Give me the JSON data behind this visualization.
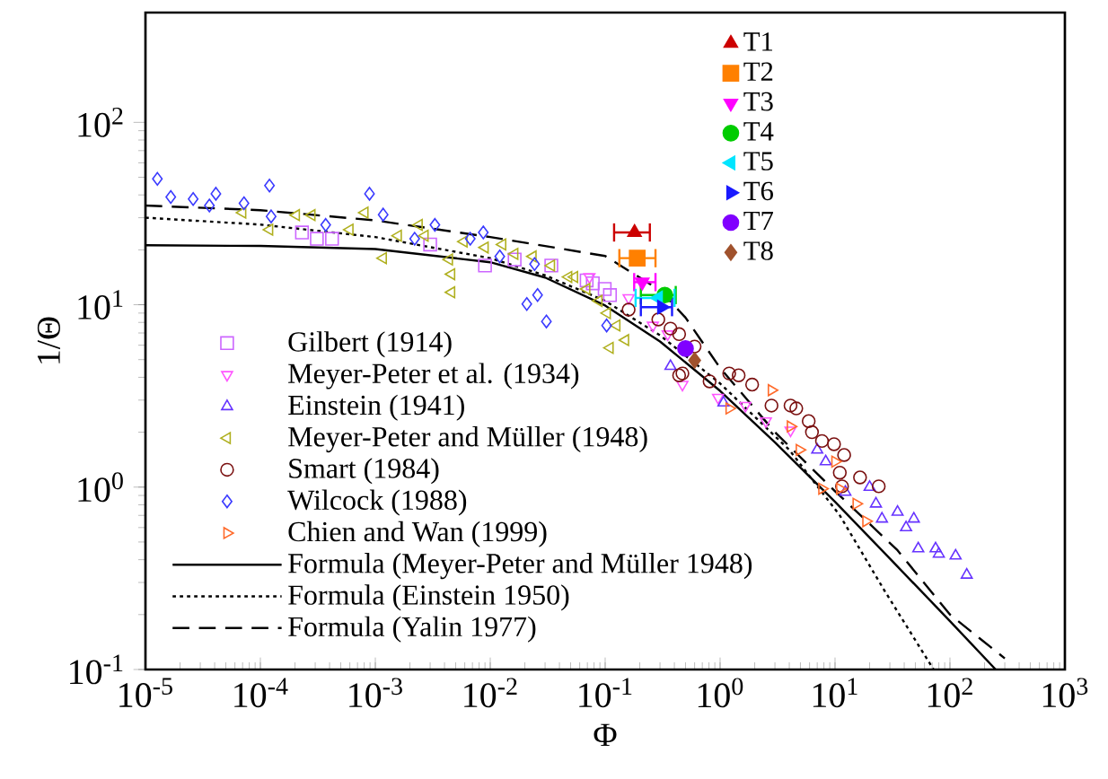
{
  "chart_data": {
    "type": "scatter",
    "xlabel": "Φ",
    "ylabel": "1/Θ",
    "log": "xy",
    "xlim": [
      1e-05,
      1000
    ],
    "ylim": [
      0.1,
      400
    ],
    "xticks": [
      {
        "value": 1e-05,
        "label": "10$^{-5}$"
      },
      {
        "value": 0.0001,
        "label": "10$^{-4}$"
      },
      {
        "value": 0.001,
        "label": "10$^{-3}$"
      },
      {
        "value": 0.01,
        "label": "10$^{-2}$"
      },
      {
        "value": 0.1,
        "label": "10$^{-1}$"
      },
      {
        "value": 1,
        "label": "10$^{0}$"
      },
      {
        "value": 10,
        "label": "10$^{1}$"
      },
      {
        "value": 100,
        "label": "10$^{2}$"
      },
      {
        "value": 1000,
        "label": "10$^{3}$"
      }
    ],
    "yticks": [
      {
        "value": 0.1,
        "label": "10$^{-1}$"
      },
      {
        "value": 1,
        "label": "10$^{0}$"
      },
      {
        "value": 10,
        "label": "10$^{1}$"
      },
      {
        "value": 100,
        "label": "10$^{2}$"
      }
    ],
    "legend": "left",
    "series": [
      {
        "name": "Gilbert (1914)",
        "color": "#cc66ff",
        "marker": "square",
        "x": [
          0.00023,
          0.00031,
          0.00042,
          0.003,
          0.009,
          0.0163,
          0.034,
          0.069,
          0.078,
          0.099,
          0.11
        ],
        "values": [
          24.9,
          23,
          23,
          21.4,
          16.4,
          17.7,
          16.4,
          13.6,
          13.1,
          12.2,
          11.3
        ]
      },
      {
        "name": "Meyer-Peter et al. (1934)",
        "color": "#ff55ff",
        "marker": "triangle_down",
        "x": [
          0.073,
          0.16,
          0.21,
          0.26,
          0.35,
          0.47,
          0.96,
          1.66,
          2.5,
          4.1
        ],
        "values": [
          14.2,
          10.9,
          null,
          7.7,
          6.9,
          3.65,
          3.1,
          2.8,
          2.3,
          2.05
        ]
      },
      {
        "name": "Einstein (1941)",
        "color": "#6633ff",
        "marker": "triangle",
        "x": [
          0.37,
          1.07,
          7.0,
          8.3,
          12.3,
          20,
          22.7,
          25.6,
          35,
          41.5,
          48.5,
          53,
          75,
          80,
          112,
          140
        ],
        "values": [
          4.6,
          2.9,
          1.6,
          1.38,
          0.94,
          1.0,
          0.81,
          0.67,
          0.73,
          0.6,
          0.67,
          0.46,
          0.46,
          0.43,
          0.42,
          0.33
        ]
      },
      {
        "name": "Meyer-Peter and Müller (1948)",
        "color": "#b0b020",
        "marker": "triangle_left",
        "x": [
          7e-05,
          0.00012,
          0.000205,
          0.00028,
          0.0006,
          0.00081,
          0.00117,
          0.00158,
          0.0024,
          0.0027,
          0.0044,
          0.0046,
          0.0046,
          0.0059,
          0.009,
          0.0128,
          0.0163,
          0.0235,
          0.034,
          0.048,
          0.054,
          0.069,
          0.088,
          0.104,
          0.11,
          0.126,
          0.15
        ],
        "values": [
          32,
          25.8,
          31,
          31,
          25.8,
          32,
          18,
          23.9,
          27.4,
          23.9,
          17.7,
          14.7,
          11.7,
          22.2,
          20.6,
          21.4,
          19,
          18.4,
          16.4,
          14.2,
          14.2,
          12.2,
          10.5,
          9.0,
          5.8,
          7.7,
          6.4
        ]
      },
      {
        "name": "Smart (1984)",
        "color": "#7a1010",
        "marker": "circle",
        "x": [
          0.16,
          0.29,
          0.37,
          0.44,
          0.47,
          0.6,
          0.44,
          0.81,
          1.2,
          1.45,
          1.9,
          2.8,
          4.1,
          4.6,
          5.9,
          6.3,
          7.7,
          9.8,
          12.0,
          11,
          11.5,
          16.5,
          24
        ],
        "values": [
          9.4,
          8.3,
          7.4,
          6.9,
          4.2,
          5.9,
          4.1,
          3.8,
          4.2,
          4.1,
          3.65,
          2.8,
          2.8,
          2.7,
          2.3,
          2.0,
          1.79,
          1.72,
          1.5,
          1.2,
          1.01,
          1.13,
          1.01
        ]
      },
      {
        "name": "Wilcock (1988)",
        "color": "#3a3aff",
        "marker": "diamond",
        "x": [
          1.27e-05,
          1.66e-05,
          2.6e-05,
          3.6e-05,
          4.1e-05,
          7.2e-05,
          0.00012,
          0.000124,
          0.00037,
          0.00089,
          0.00117,
          0.0022,
          0.0033,
          0.0067,
          0.0087,
          0.0121,
          0.0208,
          0.0258,
          0.0308,
          0.0243,
          0.103
        ],
        "values": [
          49,
          39,
          38,
          35,
          40.6,
          36,
          45,
          30.5,
          27.4,
          40.6,
          31.2,
          23,
          27.4,
          23,
          24.9,
          18.4,
          10.1,
          11.3,
          8.1,
          16.7,
          7.7
        ]
      },
      {
        "name": "Chien and Wan (1999)",
        "color": "#ff6a2a",
        "marker": "triangle_right",
        "x": [
          1.2,
          2.8,
          4.1,
          4.9,
          7.7,
          10.0,
          11,
          15.3,
          18.6
        ],
        "values": [
          2.7,
          3.4,
          2.15,
          1.6,
          0.98,
          1.38,
          0.98,
          0.81,
          0.65
        ]
      },
      {
        "name": "Formula (Meyer-Peter and Müller 1948)",
        "type": "line",
        "color": "#000000",
        "line_style": "solid",
        "x": [
          1e-05,
          0.0001,
          0.001,
          0.01,
          0.03,
          0.1,
          0.3,
          1,
          3,
          10,
          30,
          100,
          250
        ],
        "values": [
          21.2,
          21.0,
          20.2,
          17.1,
          14.1,
          9.9,
          6.29,
          3.37,
          1.76,
          0.83,
          0.406,
          0.184,
          0.1
        ]
      },
      {
        "name": "Formula (Einstein 1950)",
        "type": "line",
        "color": "#000000",
        "line_style": "dotted",
        "x": [
          1e-05,
          0.0001,
          0.001,
          0.01,
          0.03,
          0.1,
          0.3,
          1,
          4,
          11,
          27,
          72
        ],
        "values": [
          30,
          27.5,
          23.5,
          18,
          14.5,
          10.5,
          6.8,
          3.7,
          1.6,
          0.7,
          0.27,
          0.1
        ]
      },
      {
        "name": "Formula (Yalin 1977)",
        "type": "line",
        "color": "#000000",
        "line_style": "dashed",
        "x": [
          1e-05,
          0.0001,
          0.001,
          0.01,
          0.03,
          0.1,
          0.3,
          0.5,
          1,
          3,
          10,
          35,
          100,
          300
        ],
        "values": [
          35,
          33,
          29,
          23.5,
          21,
          18.5,
          12,
          8.5,
          4.5,
          2.0,
          0.95,
          0.45,
          0.2,
          0.115
        ]
      },
      {
        "name": "T1",
        "color": "#cc0000",
        "marker": "triangle",
        "x": [
          0.18
        ],
        "values": [
          24.9
        ],
        "xerrors": [
          [
            0.117,
            0.25
          ]
        ]
      },
      {
        "name": "T2",
        "color": "#ff8000",
        "marker": "square",
        "x": [
          0.19
        ],
        "values": [
          18.0
        ],
        "xerrors": [
          [
            0.13,
            0.28
          ]
        ]
      },
      {
        "name": "T3",
        "color": "#ff00ff",
        "marker": "triangle_down",
        "x": [
          0.21
        ],
        "values": [
          13.3
        ],
        "xerrors": [
          [
            0.175,
            0.28
          ]
        ]
      },
      {
        "name": "T4",
        "color": "#00cc00",
        "marker": "circle",
        "x": [
          0.33
        ],
        "values": [
          11.3
        ],
        "xerrors": [
          [
            0.2,
            0.42
          ]
        ]
      },
      {
        "name": "T5",
        "color": "#00e5ff",
        "marker": "triangle_left",
        "x": [
          0.29
        ],
        "values": [
          10.9
        ],
        "xerrors": [
          [
            0.18,
            0.41
          ]
        ]
      },
      {
        "name": "T6",
        "color": "#1a1aff",
        "marker": "triangle_right",
        "x": [
          0.31
        ],
        "values": [
          9.7
        ],
        "xerrors": [
          [
            0.2,
            0.39
          ]
        ]
      },
      {
        "name": "T7",
        "color": "#8000ff",
        "marker": "circle",
        "x": [
          0.5
        ],
        "values": [
          5.75
        ]
      },
      {
        "name": "T8",
        "color": "#a0522d",
        "marker": "diamond",
        "x": [
          0.6
        ],
        "values": [
          4.95
        ]
      }
    ]
  }
}
